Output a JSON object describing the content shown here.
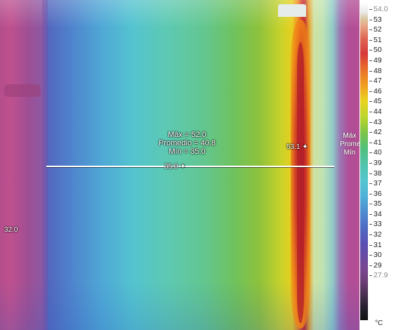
{
  "stats_overlay": {
    "max": "Máx = 52.0",
    "average": "Promedio = 40.8",
    "min": "Mín = 35.0"
  },
  "spot_labels": {
    "hot_spot": "53.1",
    "line_low": "35.0",
    "left_edge": "32.0"
  },
  "side_stats_labels": [
    "Máx",
    "Promed",
    "Mín"
  ],
  "scale": {
    "top_value": "54.0",
    "bottom_value": "27.9",
    "unit": "°C",
    "ticks": [
      "53",
      "52",
      "51",
      "50",
      "49",
      "48",
      "47",
      "46",
      "45",
      "44",
      "43",
      "42",
      "41",
      "40",
      "39",
      "38",
      "37",
      "36",
      "35",
      "34",
      "33",
      "32",
      "31",
      "30",
      "29"
    ]
  }
}
